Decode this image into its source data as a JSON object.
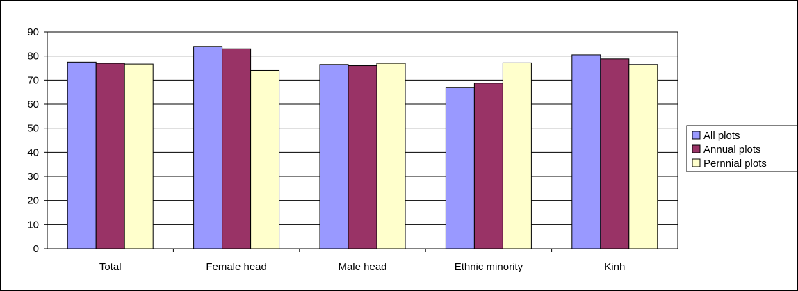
{
  "chart_data": {
    "type": "bar",
    "categories": [
      "Total",
      "Female head",
      "Male head",
      "Ethnic minority",
      "Kinh"
    ],
    "series": [
      {
        "name": "All plots",
        "color": "#9999ff",
        "values": [
          77.5,
          84,
          76.5,
          67,
          80.5
        ]
      },
      {
        "name": "Annual plots",
        "color": "#993366",
        "values": [
          77,
          83,
          76,
          68.7,
          78.8
        ]
      },
      {
        "name": "Pernnial plots",
        "color": "#ffffcc",
        "values": [
          76.7,
          74,
          77,
          77.2,
          76.5
        ]
      }
    ],
    "ylim": [
      0,
      90
    ],
    "yticks": [
      0,
      10,
      20,
      30,
      40,
      50,
      60,
      70,
      80,
      90
    ],
    "grid": true,
    "legend_position": "right"
  }
}
